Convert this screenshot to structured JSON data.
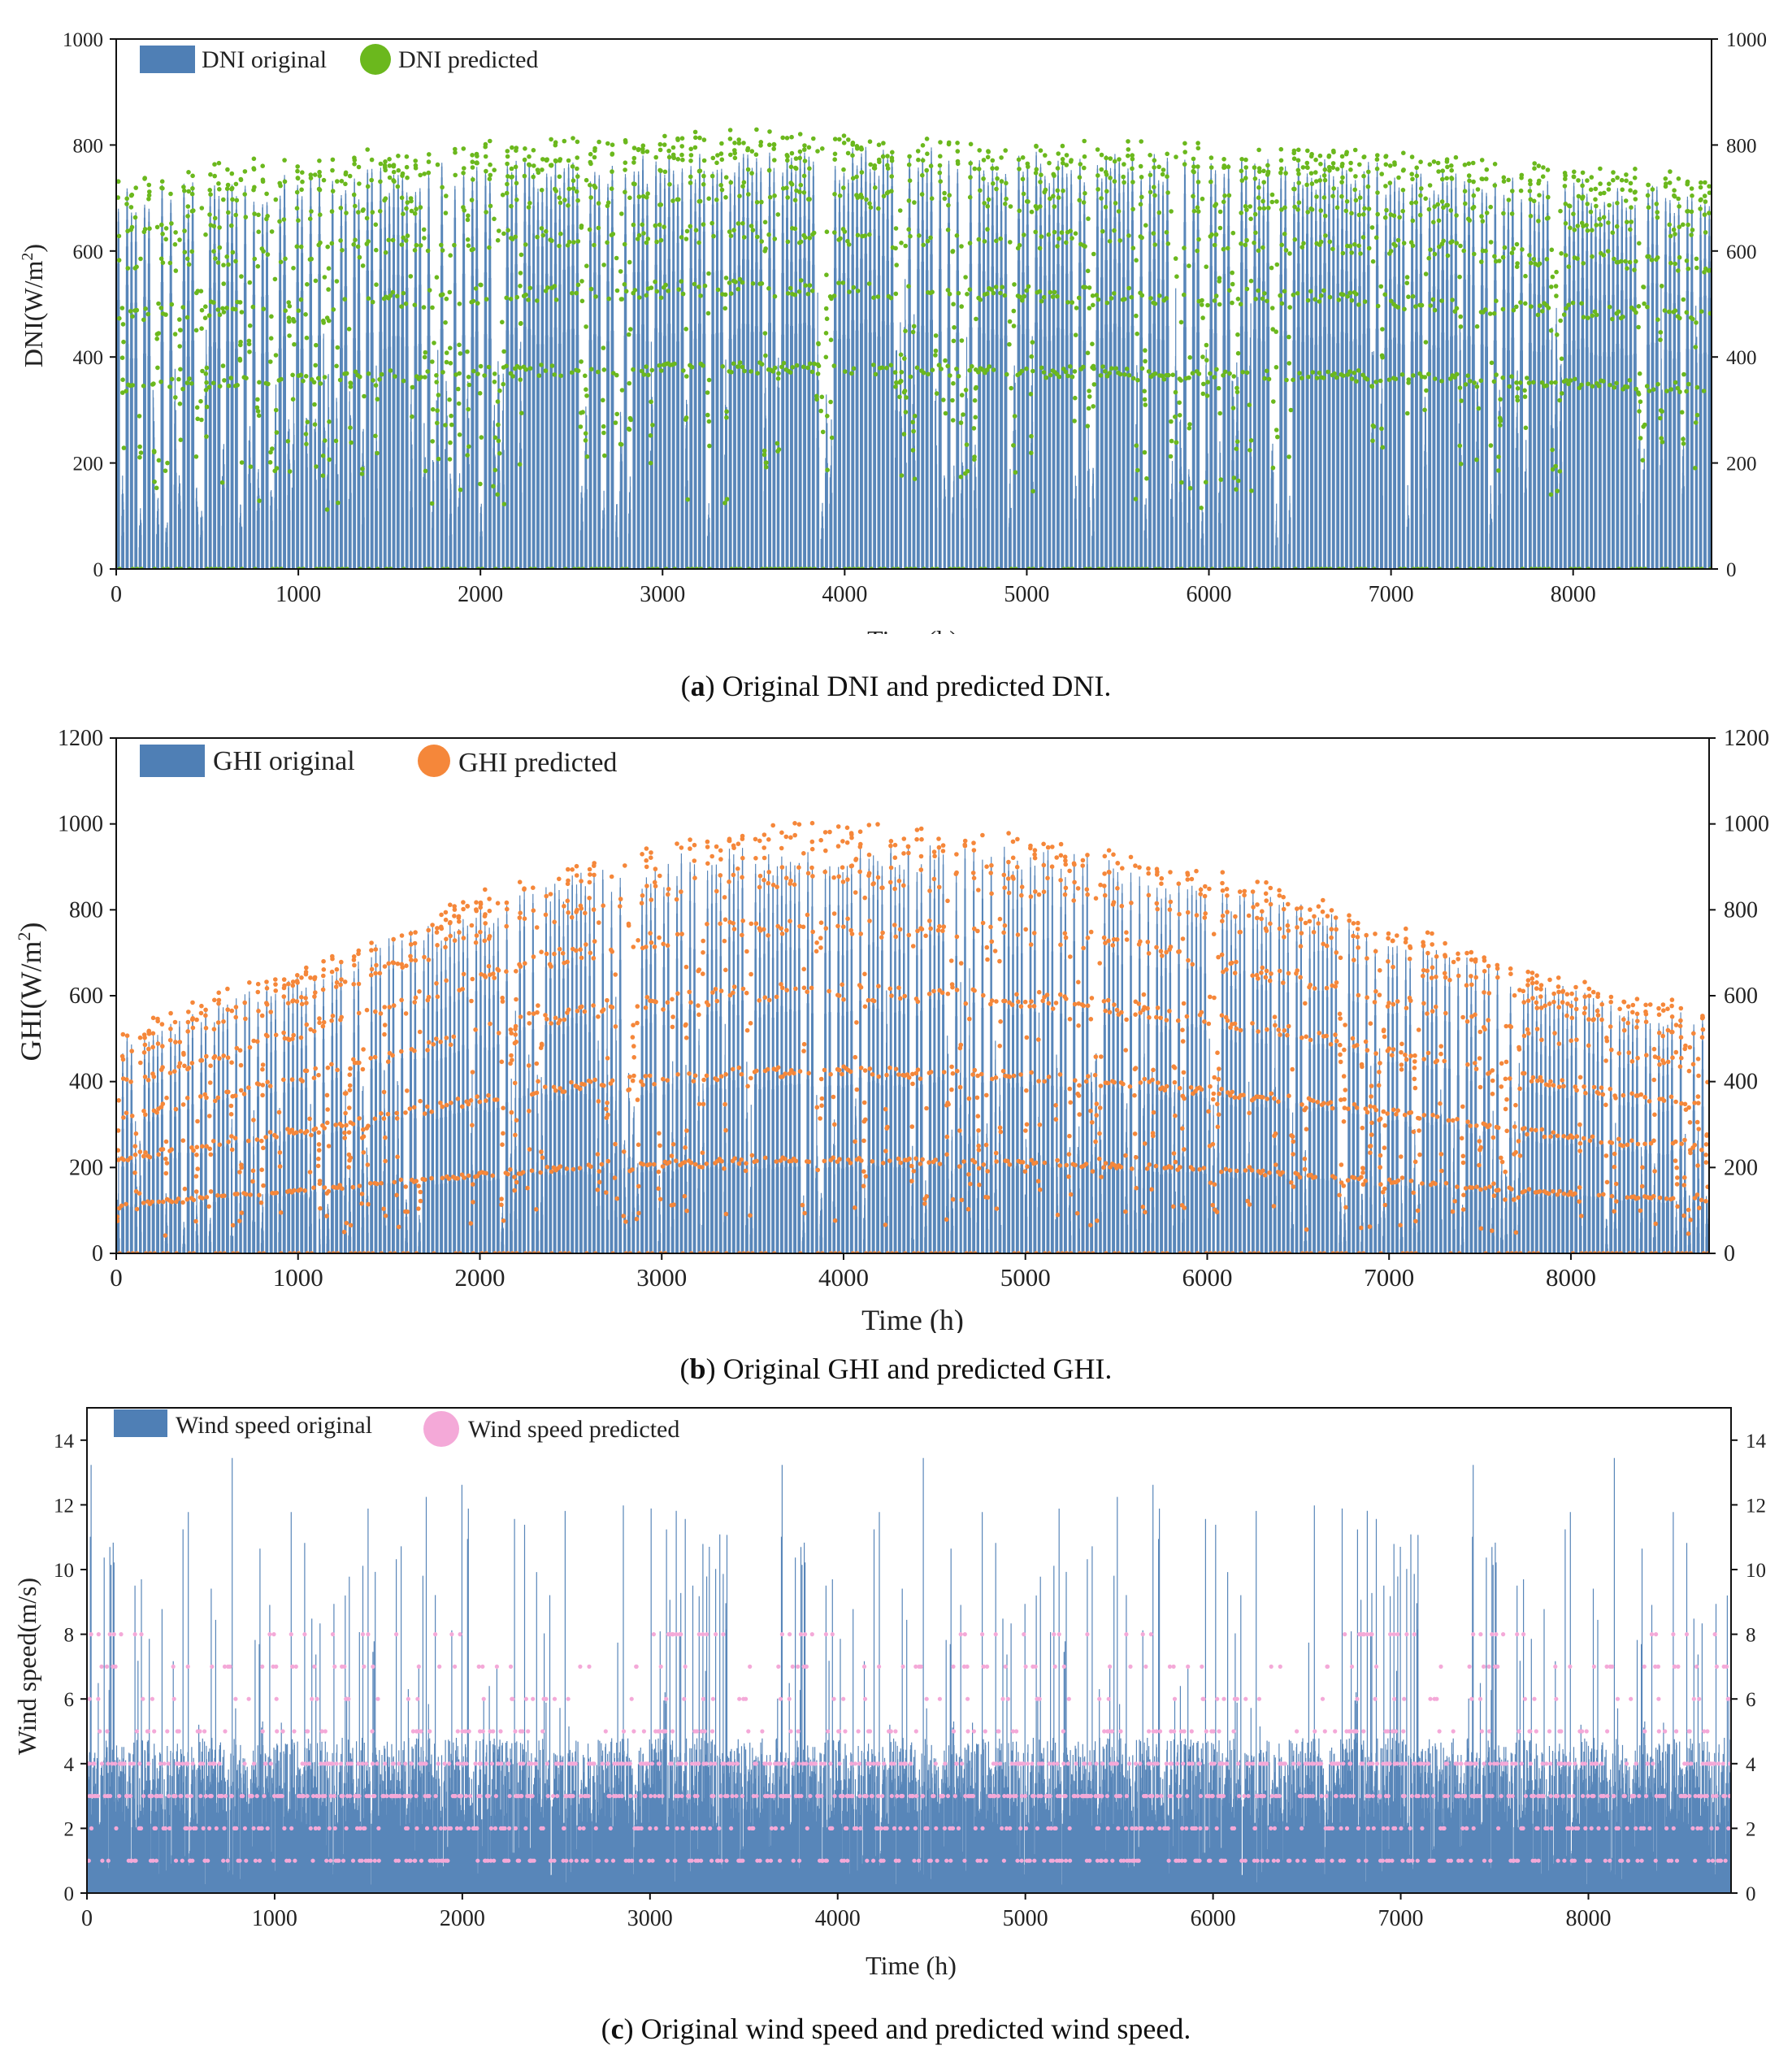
{
  "colors": {
    "bar": "#4f7fb5",
    "dni_pred": "#6bb81d",
    "ghi_pred": "#f5873a",
    "wind_pred": "#f4a9d8",
    "axis": "#111111"
  },
  "chart_data": [
    {
      "type": "bar+scatter",
      "panel_label": "a",
      "caption": "Original DNI and predicted DNI.",
      "title": "",
      "xlabel": "Time (h)",
      "ylabel": "DNI(W/m²)",
      "ylabel_main": "DNI(W/m",
      "ylabel_sup": "2",
      "ylabel_end": ")",
      "xlim": [
        0,
        8760
      ],
      "ylim": [
        0,
        1000
      ],
      "x_ticks": [
        "0",
        "1000",
        "2000",
        "3000",
        "4000",
        "5000",
        "6000",
        "7000",
        "8000"
      ],
      "y_ticks": [
        "0",
        "200",
        "400",
        "600",
        "800",
        "1000"
      ],
      "y_ticks_right": [
        "0",
        "200",
        "400",
        "600",
        "800",
        "1000"
      ],
      "legend": [
        "DNI original",
        "DNI predicted"
      ],
      "legend_position": "top-left",
      "series": [
        {
          "name": "DNI original",
          "kind": "bar",
          "daily_peak_envelope": [
            720,
            735,
            745,
            750,
            760,
            770,
            775,
            780,
            785,
            790,
            795,
            800,
            795,
            790,
            790,
            785,
            780,
            775,
            770,
            760,
            750,
            740,
            730,
            720
          ]
        },
        {
          "name": "DNI predicted",
          "kind": "scatter",
          "daily_peak_envelope": [
            735,
            750,
            760,
            770,
            780,
            790,
            800,
            805,
            810,
            815,
            810,
            800,
            800,
            795,
            795,
            790,
            790,
            785,
            780,
            770,
            760,
            750,
            740,
            730
          ]
        }
      ],
      "clear_day_fraction": 0.72
    },
    {
      "type": "bar+scatter",
      "panel_label": "b",
      "caption": "Original GHI and predicted GHI.",
      "title": "",
      "xlabel": "Time (h)",
      "ylabel": "GHI(W/m²)",
      "ylabel_main": "GHI(W/m",
      "ylabel_sup": "2",
      "ylabel_end": ")",
      "xlim": [
        0,
        8760
      ],
      "ylim": [
        0,
        1200
      ],
      "x_ticks": [
        "0",
        "1000",
        "2000",
        "3000",
        "4000",
        "5000",
        "6000",
        "7000",
        "8000"
      ],
      "y_ticks": [
        "0",
        "200",
        "400",
        "600",
        "800",
        "1000",
        "1200"
      ],
      "y_ticks_right": [
        "0",
        "200",
        "400",
        "600",
        "800",
        "1000",
        "1200"
      ],
      "legend": [
        "GHI original",
        "GHI predicted"
      ],
      "legend_position": "top-left",
      "series": [
        {
          "name": "GHI original",
          "kind": "bar",
          "daily_peak_envelope": [
            500,
            560,
            620,
            680,
            740,
            800,
            860,
            900,
            930,
            950,
            960,
            960,
            960,
            950,
            930,
            900,
            860,
            820,
            770,
            720,
            670,
            620,
            580,
            560
          ]
        },
        {
          "name": "GHI predicted",
          "kind": "scatter",
          "daily_peak_envelope": [
            510,
            570,
            630,
            690,
            750,
            820,
            880,
            920,
            950,
            980,
            990,
            980,
            970,
            960,
            940,
            910,
            870,
            830,
            780,
            730,
            680,
            630,
            590,
            570
          ]
        }
      ],
      "clear_day_fraction": 0.7
    },
    {
      "type": "bar+scatter",
      "panel_label": "c",
      "caption": "Original wind speed and predicted wind speed.",
      "title": "",
      "xlabel": "Time (h)",
      "ylabel": "Wind speed(m/s)",
      "ylabel_main": "Wind speed(m/s)",
      "ylabel_sup": "",
      "ylabel_end": "",
      "xlim": [
        0,
        8760
      ],
      "ylim": [
        0,
        15
      ],
      "x_ticks": [
        "0",
        "1000",
        "2000",
        "3000",
        "4000",
        "5000",
        "6000",
        "7000",
        "8000"
      ],
      "y_ticks": [
        "0",
        "2",
        "4",
        "6",
        "8",
        "10",
        "12",
        "14"
      ],
      "y_ticks_right": [
        "0",
        "2",
        "4",
        "6",
        "8",
        "10",
        "12",
        "14"
      ],
      "legend": [
        "Wind speed original",
        "Wind speed predicted"
      ],
      "legend_position": "top-left",
      "series": [
        {
          "name": "Wind speed original",
          "kind": "bar",
          "typical_max": 14.3,
          "typical_level": 3
        },
        {
          "name": "Wind speed predicted",
          "kind": "scatter",
          "discrete_levels": [
            1,
            2,
            3,
            4,
            5,
            6,
            7,
            8
          ]
        }
      ]
    }
  ]
}
